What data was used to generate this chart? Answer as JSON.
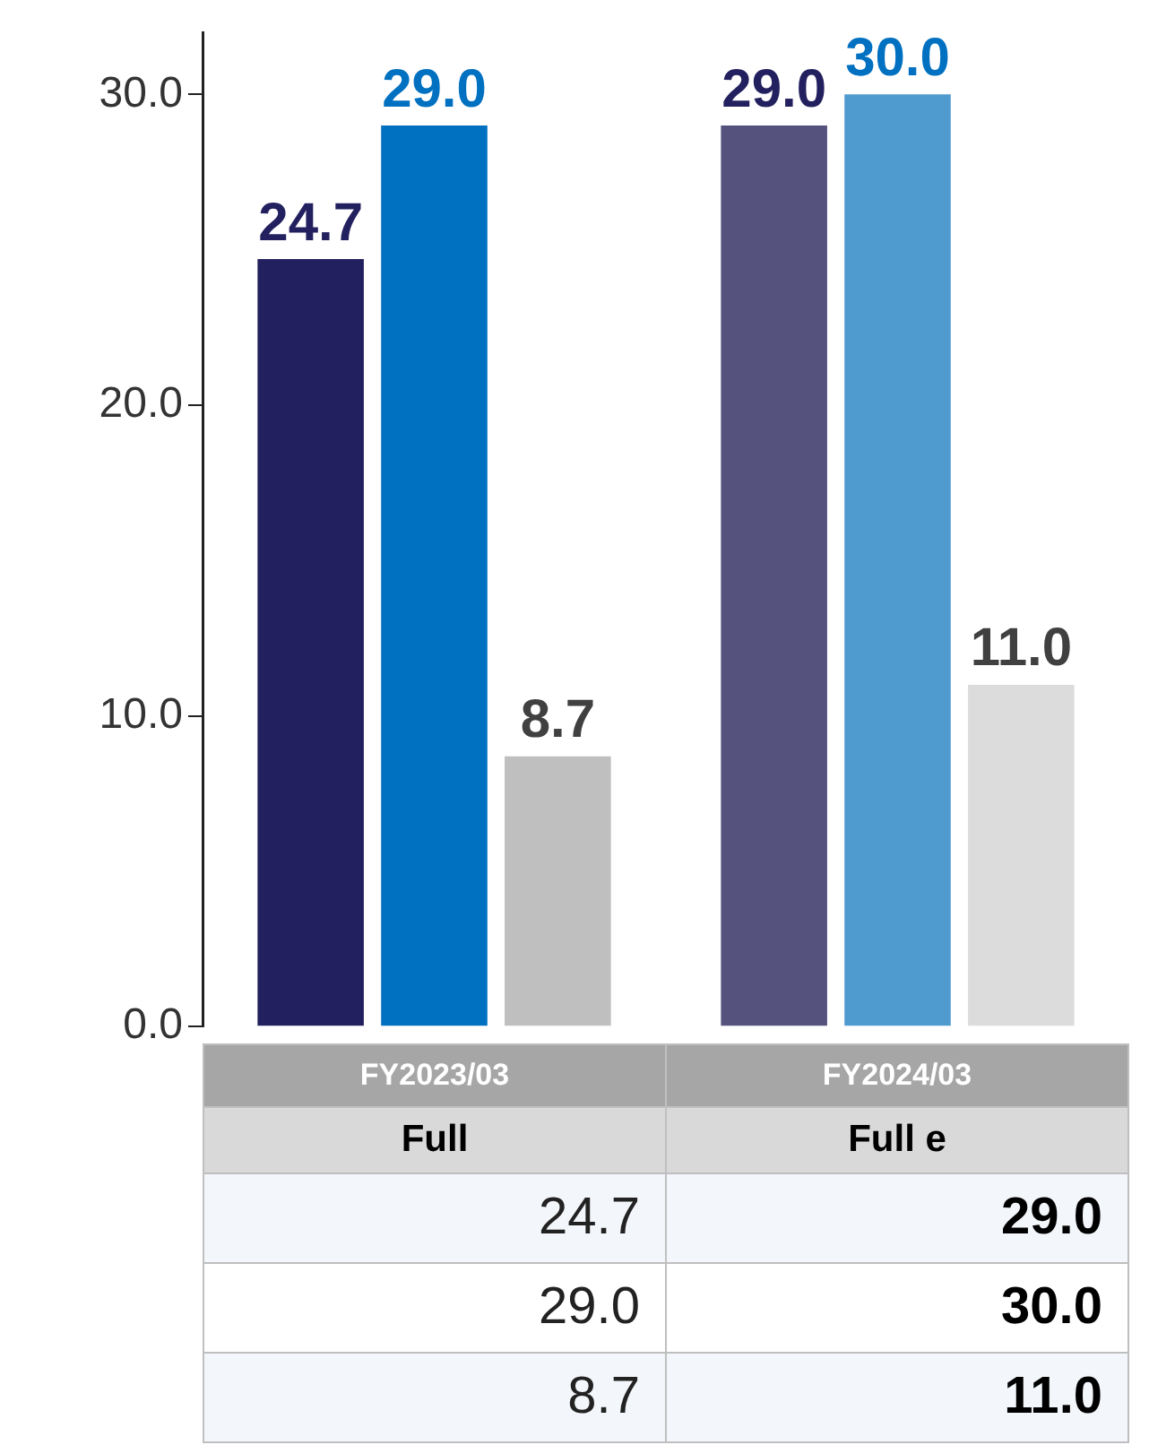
{
  "chart_data": {
    "type": "bar",
    "categories": [
      "FY2023/03\nFull",
      "FY2024/03\nFull e"
    ],
    "series": [
      {
        "color": "#23205f",
        "colors": [
          "#23205f",
          "#55537e"
        ],
        "values": [
          24.7,
          29.0
        ],
        "value_labels": [
          "24.7",
          "29.0"
        ]
      },
      {
        "color": "#0070c0",
        "colors": [
          "#0070c0",
          "#4f9bd0"
        ],
        "values": [
          29.0,
          30.0
        ],
        "value_labels": [
          "29.0",
          "30.0"
        ]
      },
      {
        "color": "#404040",
        "colors": [
          "#bfbfbf",
          "#dcdcdc"
        ],
        "values": [
          8.7,
          11.0
        ],
        "value_labels": [
          "8.7",
          "11.0"
        ]
      }
    ],
    "ylim": [
      0,
      32
    ],
    "yticks": [
      {
        "value": 0,
        "label": "0.0"
      },
      {
        "value": 10,
        "label": "10.0"
      },
      {
        "value": 20,
        "label": "20.0"
      },
      {
        "value": 30,
        "label": "30.0"
      }
    ],
    "grid": false,
    "legend": false
  }
}
